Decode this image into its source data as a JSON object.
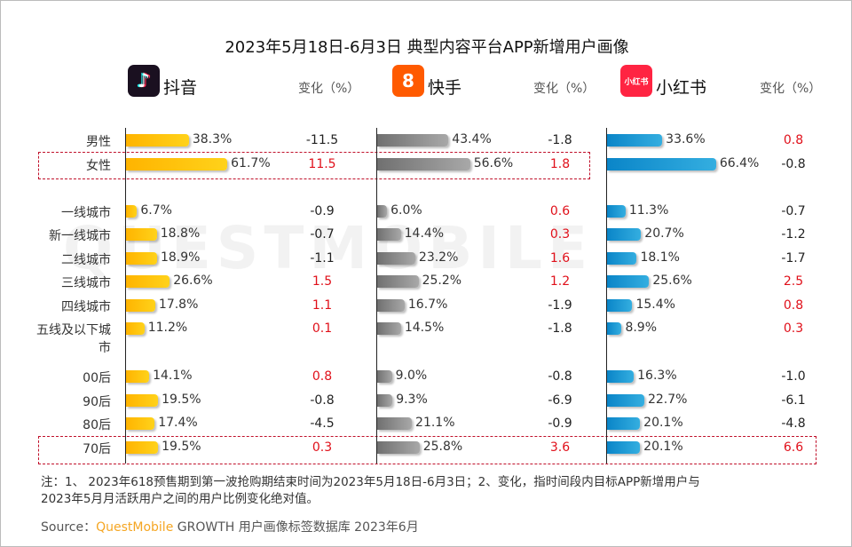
{
  "title": "2023年5月18日-6月3日 典型内容平台APP新增用户画像",
  "watermark": "QUESTMOBILE",
  "change_header": "变化（%）",
  "chart_data": {
    "type": "bar",
    "categories": [
      "男性",
      "女性",
      "一线城市",
      "新一线城市",
      "二线城市",
      "三线城市",
      "四线城市",
      "五线及以下城市",
      "00后",
      "90后",
      "80后",
      "70后"
    ],
    "series": [
      {
        "name": "抖音",
        "color": "#ffc20e",
        "logo": "tiktok-logo",
        "values": [
          38.3,
          61.7,
          6.7,
          18.8,
          18.9,
          26.6,
          17.8,
          11.2,
          14.1,
          19.5,
          17.4,
          19.5
        ],
        "labels": [
          "38.3%",
          "61.7%",
          "6.7%",
          "18.8%",
          "18.9%",
          "26.6%",
          "17.8%",
          "11.2%",
          "14.1%",
          "19.5%",
          "17.4%",
          "19.5%"
        ],
        "change": [
          "-11.5",
          "11.5",
          "-0.9",
          "-0.7",
          "-1.1",
          "1.5",
          "1.1",
          "0.1",
          "0.8",
          "-0.8",
          "-4.5",
          "0.3"
        ]
      },
      {
        "name": "快手",
        "color": "#8a8a8a",
        "logo": "kuaishou-logo",
        "values": [
          43.4,
          56.6,
          6.0,
          14.4,
          23.2,
          25.2,
          16.7,
          14.5,
          9.0,
          9.3,
          21.1,
          25.8
        ],
        "labels": [
          "43.4%",
          "56.6%",
          "6.0%",
          "14.4%",
          "23.2%",
          "25.2%",
          "16.7%",
          "14.5%",
          "9.0%",
          "9.3%",
          "21.1%",
          "25.8%"
        ],
        "change": [
          "-1.8",
          "1.8",
          "0.6",
          "0.3",
          "1.6",
          "1.2",
          "-1.9",
          "-1.8",
          "-0.8",
          "-6.9",
          "-0.9",
          "3.6"
        ]
      },
      {
        "name": "小红书",
        "color": "#1a9ad6",
        "logo": "xiaohongshu-logo",
        "logo_text": "小红书",
        "values": [
          33.6,
          66.4,
          11.3,
          20.7,
          18.1,
          25.6,
          15.4,
          8.9,
          16.3,
          22.7,
          20.1,
          20.1
        ],
        "labels": [
          "33.6%",
          "66.4%",
          "11.3%",
          "20.7%",
          "18.1%",
          "25.6%",
          "15.4%",
          "8.9%",
          "16.3%",
          "22.7%",
          "20.1%",
          "20.1%"
        ],
        "change": [
          "0.8",
          "-0.8",
          "-0.7",
          "-1.2",
          "-1.7",
          "2.5",
          "0.8",
          "0.3",
          "-1.0",
          "-6.1",
          "-4.8",
          "6.6"
        ]
      }
    ],
    "positive_change_color": "#e0101a",
    "highlighted": [
      "女性",
      "70后"
    ]
  },
  "notes": {
    "line1": "注：1、 2023年618预售期到第一波抢购期结束时间为2023年5月18日-6月3日；2、变化，指时间段内目标APP新增用户与",
    "line2": "2023年5月月活跃用户之间的用户比例变化绝对值。",
    "source_label": "Source：",
    "source_brand": "QuestMobile",
    "source_rest": " GROWTH 用户画像标签数据库 2023年6月"
  }
}
